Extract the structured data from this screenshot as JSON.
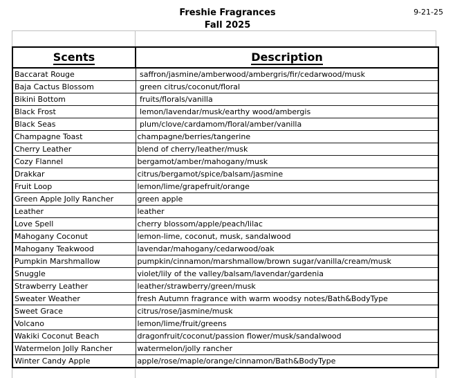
{
  "page": {
    "title": "Freshie Fragrances",
    "subtitle": "Fall 2025",
    "date": "9-21-25"
  },
  "colors": {
    "border_dark": "#000000",
    "border_light": "#bfbfbf",
    "text": "#000000",
    "background": "#ffffff"
  },
  "table": {
    "headers": {
      "scents": "Scents",
      "description": "Description"
    },
    "rows": [
      {
        "scent": "Baccarat Rouge",
        "description": " saffron/jasmine/amberwood/ambergris/fir/cedarwood/musk"
      },
      {
        "scent": "Baja Cactus Blossom",
        "description": " green citrus/coconut/floral"
      },
      {
        "scent": "Bikini Bottom",
        "description": " fruits/florals/vanilla"
      },
      {
        "scent": "Black Frost",
        "description": " lemon/lavendar/musk/earthy wood/ambergis"
      },
      {
        "scent": "Black Seas",
        "description": " plum/clove/cardamom/floral/amber/vanilla"
      },
      {
        "scent": "Champagne Toast",
        "description": "champagne/berries/tangerine"
      },
      {
        "scent": "Cherry Leather",
        "description": "blend of cherry/leather/musk"
      },
      {
        "scent": "Cozy Flannel",
        "description": "bergamot/amber/mahogany/musk"
      },
      {
        "scent": "Drakkar",
        "description": "citrus/bergamot/spice/balsam/jasmine"
      },
      {
        "scent": "Fruit Loop",
        "description": "lemon/lime/grapefruit/orange"
      },
      {
        "scent": "Green Apple Jolly Rancher",
        "description": "green apple"
      },
      {
        "scent": "Leather",
        "description": "leather"
      },
      {
        "scent": "Love Spell",
        "description": "cherry blossom/apple/peach/lilac"
      },
      {
        "scent": "Mahogany Coconut",
        "description": "lemon-lime, coconut, musk, sandalwood"
      },
      {
        "scent": "Mahogany Teakwood",
        "description": "lavendar/mahogany/cedarwood/oak"
      },
      {
        "scent": "Pumpkin Marshmallow",
        "description": "pumpkin/cinnamon/marshmallow/brown sugar/vanilla/cream/musk"
      },
      {
        "scent": "Snuggle",
        "description": "violet/lily of the valley/balsam/lavendar/gardenia"
      },
      {
        "scent": "Strawberry Leather",
        "description": "leather/strawberry/green/musk"
      },
      {
        "scent": "Sweater Weather",
        "description": "fresh Autumn fragrance with warm woodsy notes/Bath&BodyType"
      },
      {
        "scent": "Sweet Grace",
        "description": "citrus/rose/jasmine/musk"
      },
      {
        "scent": "Volcano",
        "description": "lemon/lime/fruit/greens"
      },
      {
        "scent": "Wakiki Coconut Beach",
        "description": "dragonfruit/coconut/passion flower/musk/sandalwood"
      },
      {
        "scent": "Watermelon Jolly Rancher",
        "description": "watermelon/jolly rancher"
      },
      {
        "scent": "Winter Candy Apple",
        "description": "apple/rose/maple/orange/cinnamon/Bath&BodyType"
      }
    ]
  }
}
